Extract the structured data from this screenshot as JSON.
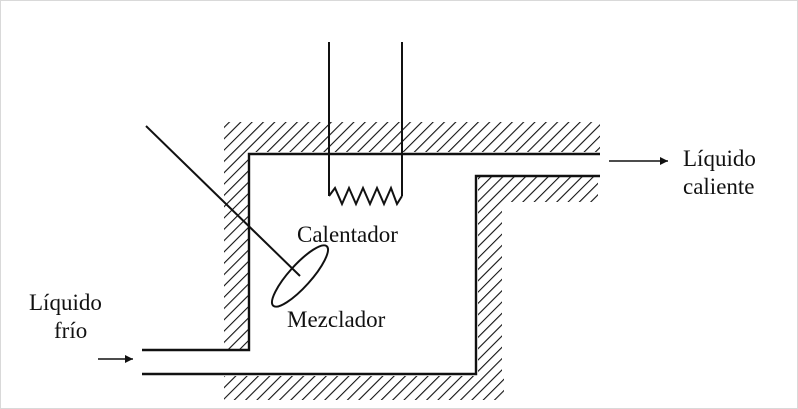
{
  "labels": {
    "heater": "Calentador",
    "mixer": "Mezclador",
    "cold_liquid_line1": "Líquido",
    "cold_liquid_line2": "frío",
    "hot_liquid_line1": "Líquido",
    "hot_liquid_line2": "caliente"
  },
  "colors": {
    "ink": "#111111",
    "background": "#ffffff",
    "frame": "#d9d9d9"
  }
}
